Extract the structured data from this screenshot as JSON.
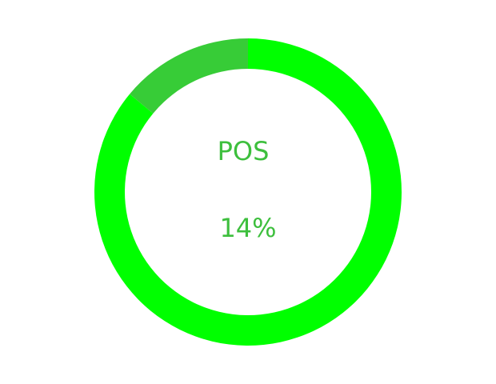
{
  "chart_data": {
    "type": "pie",
    "variant": "donut",
    "center_label": "POS",
    "center_value": "14%",
    "slices": [
      {
        "value": 14,
        "color": "#37cc37"
      },
      {
        "value": 86,
        "color": "#00ff00"
      }
    ],
    "start_angle_deg": 90,
    "direction": "counterclockwise",
    "text_color": "#3dbf3d",
    "background": "#ffffff"
  }
}
